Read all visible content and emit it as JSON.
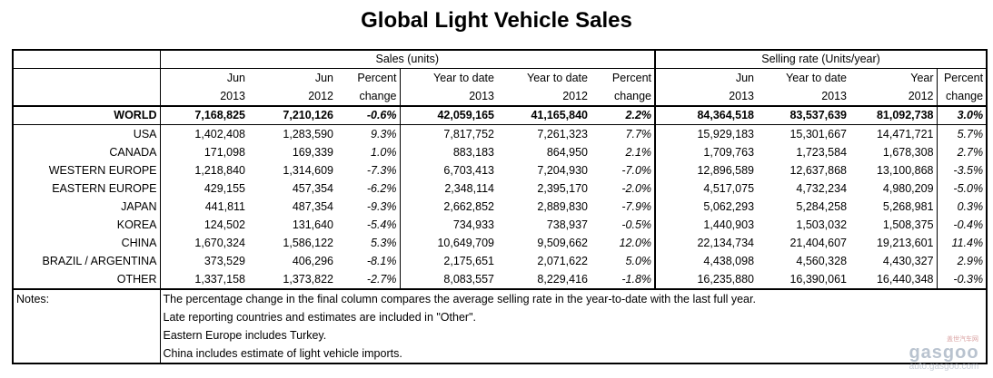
{
  "title": "Global Light Vehicle Sales",
  "header": {
    "group_sales": "Sales (units)",
    "group_rate": "Selling rate (Units/year)",
    "columns": [
      {
        "a": "Jun",
        "b": "2013"
      },
      {
        "a": "Jun",
        "b": "2012"
      },
      {
        "a": "Percent",
        "b": "change"
      },
      {
        "a": "Year to date",
        "b": "2013"
      },
      {
        "a": "Year to date",
        "b": "2012"
      },
      {
        "a": "Percent",
        "b": "change"
      },
      {
        "a": "Jun",
        "b": "2013"
      },
      {
        "a": "Year to date",
        "b": "2013"
      },
      {
        "a": "Year",
        "b": "2012"
      },
      {
        "a": "Percent",
        "b": "change"
      }
    ]
  },
  "rows": [
    {
      "region": "WORLD",
      "v": [
        "7,168,825",
        "7,210,126",
        "-0.6%",
        "42,059,165",
        "41,165,840",
        "2.2%",
        "84,364,518",
        "83,537,639",
        "81,092,738",
        "3.0%"
      ]
    },
    {
      "region": "USA",
      "v": [
        "1,402,408",
        "1,283,590",
        "9.3%",
        "7,817,752",
        "7,261,323",
        "7.7%",
        "15,929,183",
        "15,301,667",
        "14,471,721",
        "5.7%"
      ]
    },
    {
      "region": "CANADA",
      "v": [
        "171,098",
        "169,339",
        "1.0%",
        "883,183",
        "864,950",
        "2.1%",
        "1,709,763",
        "1,723,584",
        "1,678,308",
        "2.7%"
      ]
    },
    {
      "region": "WESTERN EUROPE",
      "v": [
        "1,218,840",
        "1,314,609",
        "-7.3%",
        "6,703,413",
        "7,204,930",
        "-7.0%",
        "12,896,589",
        "12,637,868",
        "13,100,868",
        "-3.5%"
      ]
    },
    {
      "region": "EASTERN EUROPE",
      "v": [
        "429,155",
        "457,354",
        "-6.2%",
        "2,348,114",
        "2,395,170",
        "-2.0%",
        "4,517,075",
        "4,732,234",
        "4,980,209",
        "-5.0%"
      ]
    },
    {
      "region": "JAPAN",
      "v": [
        "441,811",
        "487,354",
        "-9.3%",
        "2,662,852",
        "2,889,830",
        "-7.9%",
        "5,062,293",
        "5,284,258",
        "5,268,981",
        "0.3%"
      ]
    },
    {
      "region": "KOREA",
      "v": [
        "124,502",
        "131,640",
        "-5.4%",
        "734,933",
        "738,937",
        "-0.5%",
        "1,440,903",
        "1,503,032",
        "1,508,375",
        "-0.4%"
      ]
    },
    {
      "region": "CHINA",
      "v": [
        "1,670,324",
        "1,586,122",
        "5.3%",
        "10,649,709",
        "9,509,662",
        "12.0%",
        "22,134,734",
        "21,404,607",
        "19,213,601",
        "11.4%"
      ]
    },
    {
      "region": "BRAZIL / ARGENTINA",
      "v": [
        "373,529",
        "406,296",
        "-8.1%",
        "2,175,651",
        "2,071,622",
        "5.0%",
        "4,438,098",
        "4,560,328",
        "4,430,327",
        "2.9%"
      ]
    },
    {
      "region": "OTHER",
      "v": [
        "1,337,158",
        "1,373,822",
        "-2.7%",
        "8,083,557",
        "8,229,416",
        "-1.8%",
        "16,235,880",
        "16,390,061",
        "16,440,348",
        "-0.3%"
      ]
    }
  ],
  "notes": {
    "label": "Notes:",
    "lines": [
      "The percentage change in the final column compares the average selling rate in the year-to-date with the last full year.",
      "Late reporting countries and estimates are included in \"Other\".",
      "Eastern Europe includes Turkey.",
      "China includes estimate of light vehicle imports."
    ]
  },
  "watermark": {
    "logo": "gasgoo",
    "url": "auto.gasgoo.com",
    "top": "盖世汽车网"
  }
}
